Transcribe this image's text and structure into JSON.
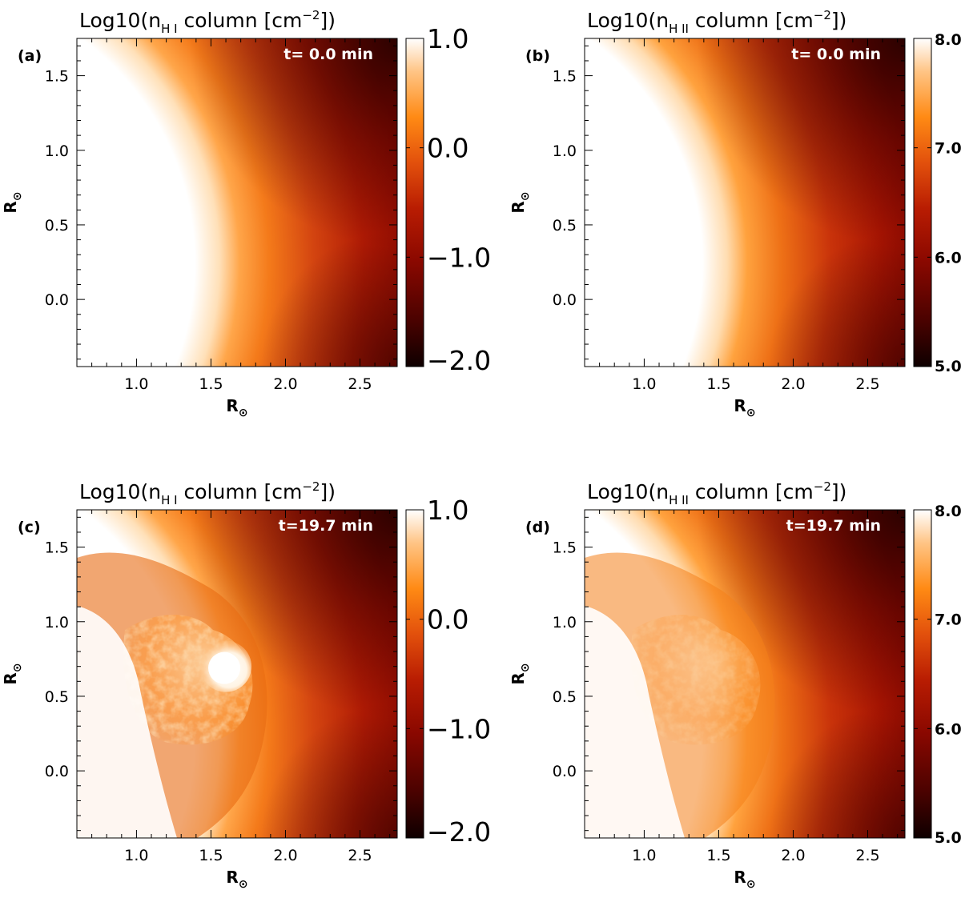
{
  "figure": {
    "panels": [
      {
        "letter": "(a)",
        "title": {
          "prefix": "Log10(n",
          "sub": "H I",
          "middle": " column [cm",
          "sup": "−2",
          "suffix": "])"
        },
        "time_label": "t= 0.0 min",
        "xlabel": {
          "main": "R",
          "sub": "⊙"
        },
        "ylabel": {
          "main": "R",
          "sub": "⊙"
        },
        "x_ticks": [
          "1.0",
          "1.5",
          "2.0",
          "2.5"
        ],
        "y_ticks": [
          "1.5",
          "1.0",
          "0.5",
          "0.0"
        ],
        "colorbar_ticks": [
          "1.0",
          "0.0",
          "−1.0",
          "−2.0"
        ],
        "state": "initial"
      },
      {
        "letter": "(b)",
        "title": {
          "prefix": "Log10(n",
          "sub": "H II",
          "middle": " column [cm",
          "sup": "−2",
          "suffix": "])"
        },
        "time_label": "t= 0.0 min",
        "xlabel": {
          "main": "R",
          "sub": "⊙"
        },
        "ylabel": {
          "main": "R",
          "sub": "⊙"
        },
        "x_ticks": [
          "1.0",
          "1.5",
          "2.0",
          "2.5"
        ],
        "y_ticks": [
          "1.5",
          "1.0",
          "0.5",
          "0.0"
        ],
        "colorbar_ticks": [
          "8.0",
          "7.0",
          "6.0",
          "5.0"
        ],
        "state": "initial"
      },
      {
        "letter": "(c)",
        "title": {
          "prefix": "Log10(n",
          "sub": "H I",
          "middle": " column [cm",
          "sup": "−2",
          "suffix": "])"
        },
        "time_label": "t=19.7 min",
        "xlabel": {
          "main": "R",
          "sub": "⊙"
        },
        "ylabel": {
          "main": "R",
          "sub": "⊙"
        },
        "x_ticks": [
          "1.0",
          "1.5",
          "2.0",
          "2.5"
        ],
        "y_ticks": [
          "1.5",
          "1.0",
          "0.5",
          "0.0"
        ],
        "colorbar_ticks": [
          "1.0",
          "0.0",
          "−1.0",
          "−2.0"
        ],
        "state": "evolved-bright-blob"
      },
      {
        "letter": "(d)",
        "title": {
          "prefix": "Log10(n",
          "sub": "H II",
          "middle": " column [cm",
          "sup": "−2",
          "suffix": "])"
        },
        "time_label": "t=19.7 min",
        "xlabel": {
          "main": "R",
          "sub": "⊙"
        },
        "ylabel": {
          "main": "R",
          "sub": "⊙"
        },
        "x_ticks": [
          "1.0",
          "1.5",
          "2.0",
          "2.5"
        ],
        "y_ticks": [
          "1.5",
          "1.0",
          "0.5",
          "0.0"
        ],
        "colorbar_ticks": [
          "8.0",
          "7.0",
          "6.0",
          "5.0"
        ],
        "state": "evolved"
      }
    ],
    "colors": {
      "white": "#ffffff",
      "pale": "#ffd9a8",
      "orange": "#ff8a14",
      "orange_red": "#d8400a",
      "red": "#a80c00",
      "dark_red": "#6a0400",
      "black": "#100000"
    }
  },
  "chart_data": [
    {
      "type": "heatmap",
      "panel": "(a)",
      "title": "Log10(n_H I column [cm^-2])",
      "annotation": "t= 0.0 min",
      "xlabel": "R⊙",
      "ylabel": "R⊙",
      "xlim": [
        0.6,
        2.75
      ],
      "ylim": [
        -0.45,
        1.75
      ],
      "colorbar_range": [
        -2.0,
        1.0
      ],
      "colorbar_ticks": [
        1.0,
        0.0,
        -1.0,
        -2.0
      ],
      "colormap": "black-red-orange-white",
      "description_values": {
        "bright_edge_radius": 1.25,
        "center": [
          0.0,
          0.5
        ]
      }
    },
    {
      "type": "heatmap",
      "panel": "(b)",
      "title": "Log10(n_H II column [cm^-2])",
      "annotation": "t= 0.0 min",
      "xlabel": "R⊙",
      "ylabel": "R⊙",
      "xlim": [
        0.6,
        2.75
      ],
      "ylim": [
        -0.45,
        1.75
      ],
      "colorbar_range": [
        5.0,
        8.0
      ],
      "colorbar_ticks": [
        8.0,
        7.0,
        6.0,
        5.0
      ],
      "colormap": "black-red-orange-white"
    },
    {
      "type": "heatmap",
      "panel": "(c)",
      "title": "Log10(n_H I column [cm^-2])",
      "annotation": "t=19.7 min",
      "xlabel": "R⊙",
      "ylabel": "R⊙",
      "xlim": [
        0.6,
        2.75
      ],
      "ylim": [
        -0.45,
        1.75
      ],
      "colorbar_range": [
        -2.0,
        1.0
      ],
      "colorbar_ticks": [
        1.0,
        0.0,
        -1.0,
        -2.0
      ],
      "colormap": "black-red-orange-white",
      "features": [
        {
          "kind": "bright-blob",
          "x": 1.6,
          "y": 0.7
        }
      ]
    },
    {
      "type": "heatmap",
      "panel": "(d)",
      "title": "Log10(n_H II column [cm^-2])",
      "annotation": "t=19.7 min",
      "xlabel": "R⊙",
      "ylabel": "R⊙",
      "xlim": [
        0.6,
        2.75
      ],
      "ylim": [
        -0.45,
        1.75
      ],
      "colorbar_range": [
        5.0,
        8.0
      ],
      "colorbar_ticks": [
        8.0,
        7.0,
        6.0,
        5.0
      ],
      "colormap": "black-red-orange-white"
    }
  ]
}
